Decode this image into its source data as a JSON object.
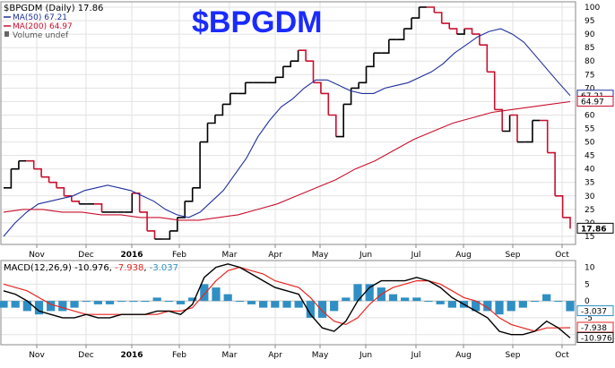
{
  "colors": {
    "price": "#000000",
    "down": "#c8102e",
    "ma50": "#1f2f9c",
    "ma200": "#c8102e",
    "macd": "#000000",
    "signal": "#e8251f",
    "hist": "#2f8fc4",
    "title": "#1a2bff"
  },
  "legend": {
    "main": "$BPGDM (Daily) 17.86",
    "ma50": "MA(50) 67.21",
    "ma200": "MA(200) 64.97",
    "volume": "Volume undef",
    "macd_label": "MACD(12,26,9)",
    "macd_val": "-10.976",
    "signal_val": "-7.938",
    "hist_val": "-3.037"
  },
  "big_title": "$BPGDM",
  "chart_data": [
    {
      "type": "line",
      "title": "$BPGDM (Daily) 17.86",
      "x_labels": [
        "Nov",
        "Dec",
        "2016",
        "Feb",
        "Mar",
        "Apr",
        "May",
        "Jun",
        "Jul",
        "Aug",
        "Sep",
        "Oct"
      ],
      "ylim": [
        12,
        102
      ],
      "y_ticks": [
        15,
        20,
        25,
        30,
        35,
        40,
        45,
        50,
        55,
        60,
        65,
        70,
        75,
        80,
        85,
        90,
        95,
        100
      ],
      "grid": true,
      "y_axis_side": "right",
      "series": [
        {
          "name": "$BPGDM",
          "values": [
            33,
            40,
            43,
            43,
            40,
            37,
            35,
            33,
            30,
            28,
            27,
            27,
            27,
            24,
            24,
            24,
            24,
            31,
            24,
            17,
            14,
            14,
            17,
            22,
            28,
            33,
            50,
            57,
            60,
            64,
            68,
            68,
            72,
            72,
            72,
            72,
            74,
            78,
            80,
            84,
            80,
            72,
            68,
            60,
            52,
            64,
            70,
            72,
            78,
            83,
            83,
            88,
            88,
            92,
            96,
            100,
            100,
            98,
            94,
            92,
            90,
            92,
            90,
            86,
            76,
            62,
            54,
            60,
            50,
            50,
            58,
            58,
            46,
            30,
            22,
            17.86
          ]
        },
        {
          "name": "MA(50) 67.21",
          "values": [
            15,
            20,
            24,
            27,
            28,
            29,
            30,
            32,
            33,
            34,
            33,
            32,
            30,
            28,
            25,
            23,
            22,
            24,
            28,
            32,
            38,
            44,
            52,
            58,
            63,
            66,
            70,
            73,
            73,
            71,
            69,
            68,
            68,
            70,
            71,
            72,
            74,
            76,
            79,
            83,
            86,
            89,
            91,
            92,
            90,
            87,
            82,
            77,
            72,
            67.21
          ]
        },
        {
          "name": "MA(200) 64.97",
          "values": [
            24,
            25,
            25,
            24,
            24,
            23,
            23,
            22,
            22,
            21,
            21,
            22,
            23,
            25,
            27,
            30,
            33,
            36,
            40,
            43,
            47,
            51,
            54,
            57,
            59,
            61,
            62,
            63,
            64,
            64.97
          ]
        }
      ]
    },
    {
      "type": "line",
      "title": "MACD(12,26,9) -10.976, -7.938, -3.037",
      "x_labels": [
        "Nov",
        "Dec",
        "2016",
        "Feb",
        "Mar",
        "Apr",
        "May",
        "Jun",
        "Jul",
        "Aug",
        "Sep",
        "Oct"
      ],
      "ylim": [
        -13,
        12
      ],
      "y_ticks": [
        -10,
        -5,
        0,
        5,
        10
      ],
      "grid": true,
      "y_axis_side": "right",
      "series": [
        {
          "name": "MACD",
          "values": [
            3,
            2,
            0,
            -3,
            -4,
            -5,
            -5,
            -4,
            -5,
            -5,
            -4,
            -4,
            -4,
            -3,
            -3,
            -4,
            -1,
            7,
            10,
            11,
            10,
            8,
            6,
            4,
            3,
            2,
            -4,
            -8,
            -9,
            -6,
            0,
            4,
            6,
            6,
            6,
            7,
            6,
            4,
            1,
            -1,
            -3,
            -5,
            -9,
            -10,
            -10,
            -9,
            -6,
            -8,
            -10.976
          ]
        },
        {
          "name": "Signal",
          "values": [
            5,
            4,
            3,
            1,
            -1,
            -2,
            -3,
            -4,
            -4,
            -4,
            -4,
            -4,
            -4,
            -4,
            -3,
            -3,
            -2,
            2,
            6,
            9,
            10,
            9,
            8,
            6,
            5,
            4,
            1,
            -3,
            -6,
            -7,
            -5,
            -1,
            2,
            4,
            5,
            6,
            6,
            5,
            3,
            1,
            0,
            -2,
            -5,
            -7,
            -8,
            -9,
            -8,
            -8,
            -7.938
          ]
        },
        {
          "name": "Histogram",
          "values": [
            -2,
            -2,
            -3,
            -4,
            -3,
            -3,
            -2,
            0,
            -1,
            -1,
            0,
            0,
            0,
            1,
            0,
            -1,
            1,
            5,
            4,
            2,
            0,
            -1,
            -2,
            -2,
            -2,
            -2,
            -5,
            -5,
            -3,
            1,
            5,
            5,
            4,
            2,
            1,
            1,
            0,
            -1,
            -2,
            -2,
            -3,
            -3,
            -4,
            -3,
            -2,
            0,
            2,
            0,
            -3.037
          ]
        }
      ]
    }
  ]
}
